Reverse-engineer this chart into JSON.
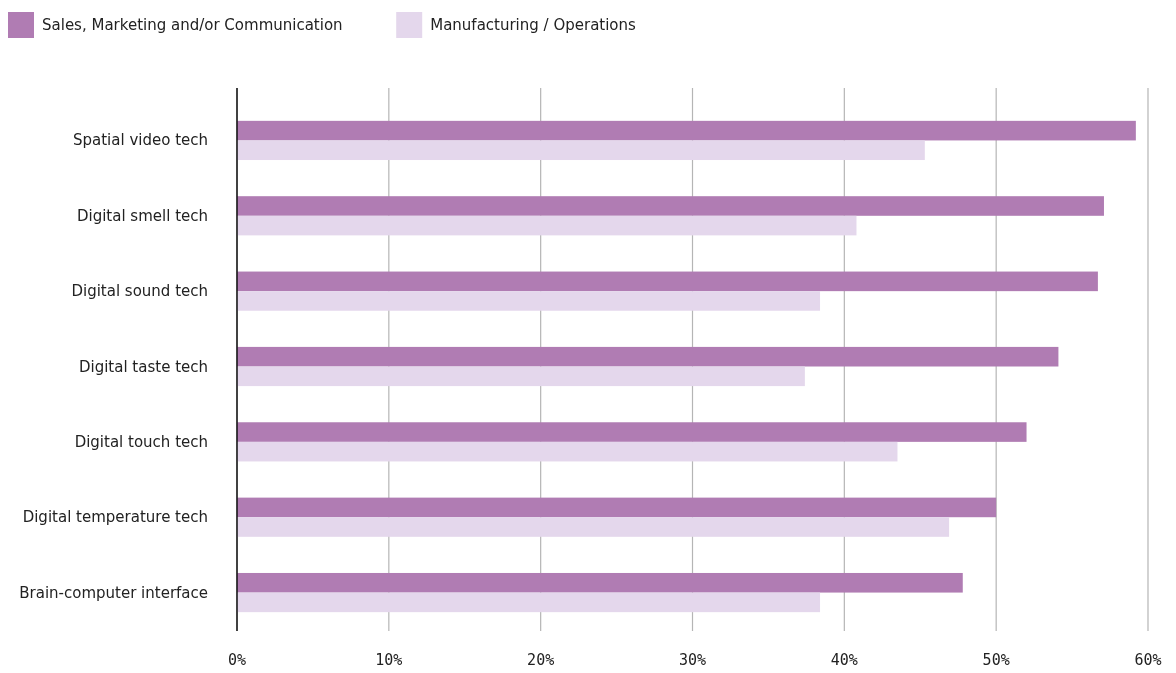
{
  "chart_data": {
    "type": "bar",
    "orientation": "horizontal",
    "categories": [
      "Spatial video tech",
      "Digital smell tech",
      "Digital sound tech",
      "Digital taste tech",
      "Digital touch tech",
      "Digital temperature tech",
      "Brain-computer interface"
    ],
    "series": [
      {
        "name": "Sales, Marketing and/or Communication",
        "color": "#b07cb3",
        "values": [
          59.2,
          57.1,
          56.7,
          54.1,
          52.0,
          50.0,
          47.8
        ]
      },
      {
        "name": "Manufacturing / Operations",
        "color": "#e4d7ec",
        "values": [
          45.3,
          40.8,
          38.4,
          37.4,
          43.5,
          46.9,
          38.4
        ]
      }
    ],
    "xlim": [
      0,
      60
    ],
    "xticks": [
      {
        "value": 0,
        "label": "0%"
      },
      {
        "value": 10,
        "label": "10%"
      },
      {
        "value": 20,
        "label": "20%"
      },
      {
        "value": 30,
        "label": "30%"
      },
      {
        "value": 40,
        "label": "40%"
      },
      {
        "value": 50,
        "label": "50%"
      },
      {
        "value": 60,
        "label": "60%"
      }
    ],
    "grid": "x",
    "legend": "top left"
  }
}
